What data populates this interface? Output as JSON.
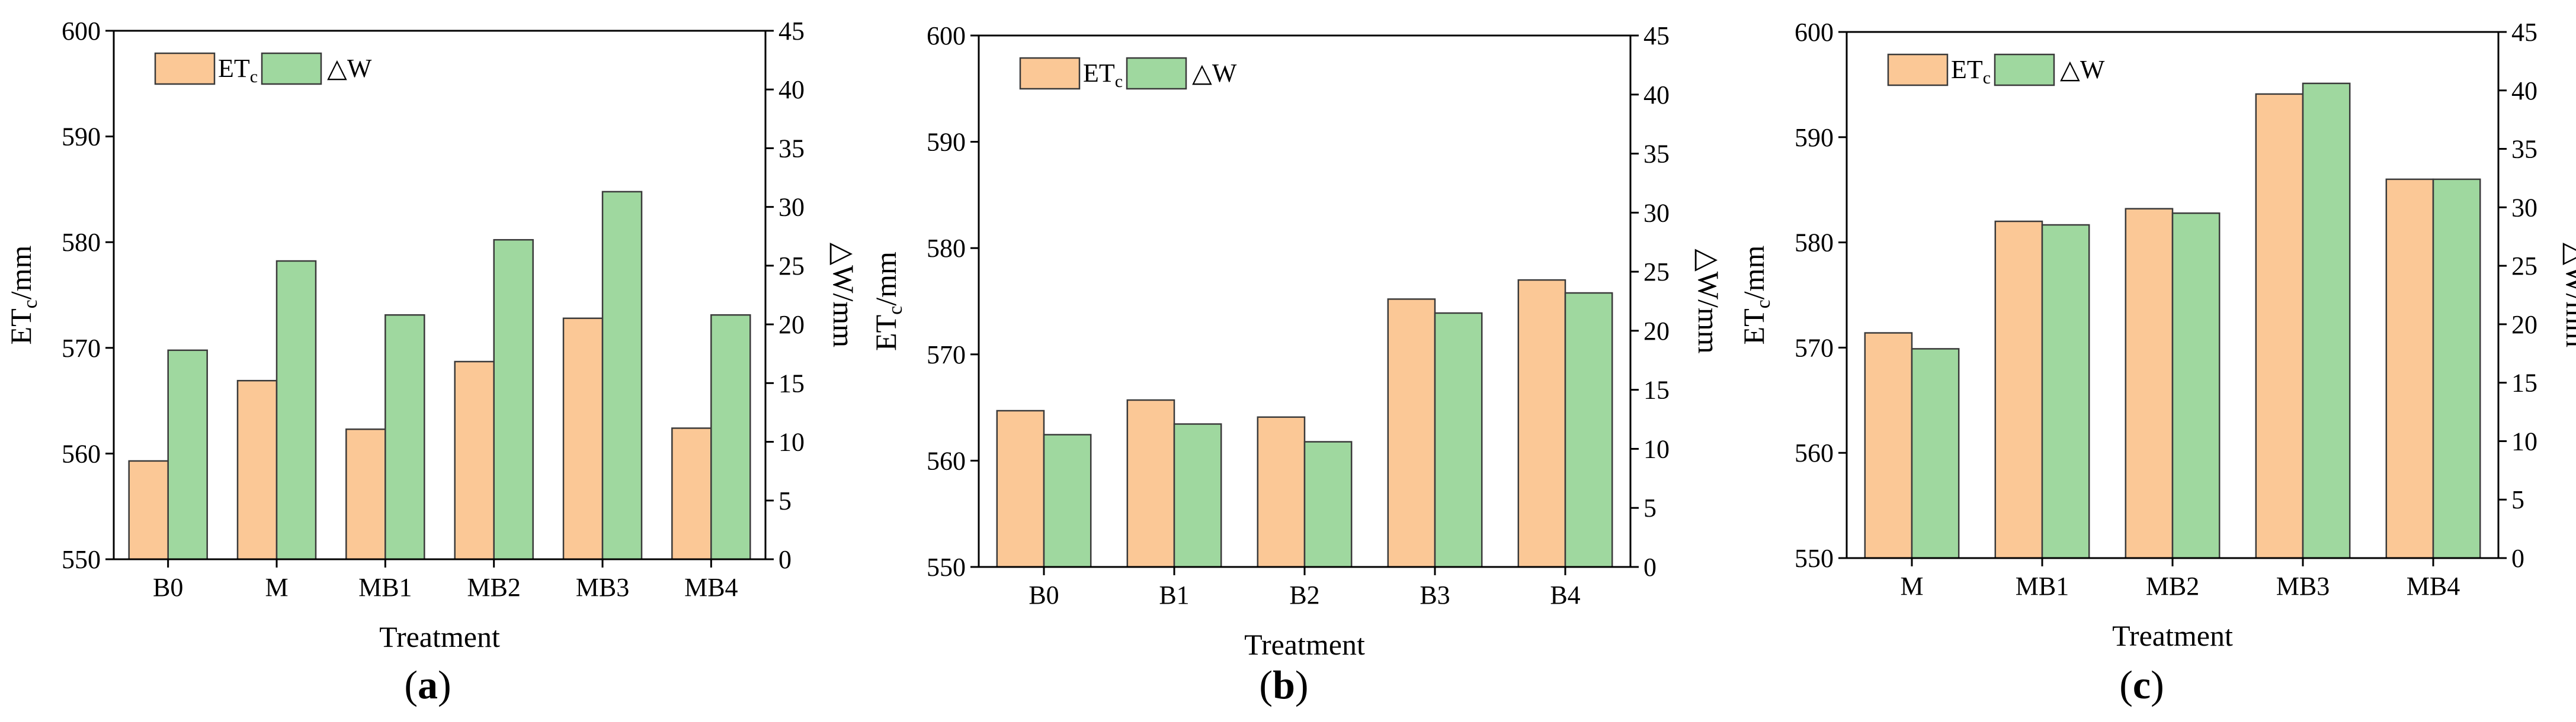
{
  "colors": {
    "etc": "#fbc896",
    "dw": "#9fd89f",
    "edge": "#3a3a3a",
    "axis": "#000000"
  },
  "chart_data": [
    {
      "type": "bar",
      "panel_label": "a",
      "categories": [
        "B0",
        "M",
        "MB1",
        "MB2",
        "MB3",
        "MB4"
      ],
      "series": [
        {
          "name": "ETc",
          "axis": "left",
          "values": [
            559.3,
            566.9,
            562.3,
            568.7,
            572.8,
            562.4
          ]
        },
        {
          "name": "ΔW",
          "axis": "right",
          "values": [
            17.8,
            25.4,
            20.8,
            27.2,
            31.3,
            20.8
          ]
        }
      ],
      "xlabel": "Treatment",
      "ylabel_left": {
        "main": "ET",
        "sub": "c",
        "rest": "/mm"
      },
      "ylabel_right": "△W/mm",
      "ylim_left": [
        550,
        600
      ],
      "ylim_right": [
        0,
        45
      ],
      "yticks_left": [
        "550",
        "560",
        "570",
        "580",
        "590",
        "600"
      ],
      "yticks_right": [
        "0",
        "5",
        "10",
        "15",
        "20",
        "25",
        "30",
        "35",
        "40",
        "45"
      ],
      "legend": [
        {
          "main": "ET",
          "sub": "c"
        },
        {
          "main": "△W",
          "sub": ""
        }
      ],
      "legend_position": "top-left"
    },
    {
      "type": "bar",
      "panel_label": "b",
      "categories": [
        "B0",
        "B1",
        "B2",
        "B3",
        "B4"
      ],
      "series": [
        {
          "name": "ETc",
          "axis": "left",
          "values": [
            564.7,
            565.7,
            564.1,
            575.2,
            577.0
          ]
        },
        {
          "name": "ΔW",
          "axis": "right",
          "values": [
            11.2,
            12.1,
            10.6,
            21.5,
            23.2
          ]
        }
      ],
      "xlabel": "Treatment",
      "ylabel_left": {
        "main": "ET",
        "sub": "c",
        "rest": "/mm"
      },
      "ylabel_right": "△W/mm",
      "ylim_left": [
        550,
        600
      ],
      "ylim_right": [
        0,
        45
      ],
      "yticks_left": [
        "550",
        "560",
        "570",
        "580",
        "590",
        "600"
      ],
      "yticks_right": [
        "0",
        "5",
        "10",
        "15",
        "20",
        "25",
        "30",
        "35",
        "40",
        "45"
      ],
      "legend": [
        {
          "main": "ET",
          "sub": "c"
        },
        {
          "main": "△W",
          "sub": ""
        }
      ],
      "legend_position": "top-left"
    },
    {
      "type": "bar",
      "panel_label": "c",
      "categories": [
        "M",
        "MB1",
        "MB2",
        "MB3",
        "MB4"
      ],
      "series": [
        {
          "name": "ETc",
          "axis": "left",
          "values": [
            571.4,
            582.0,
            583.2,
            594.1,
            586.0
          ]
        },
        {
          "name": "ΔW",
          "axis": "right",
          "values": [
            17.9,
            28.5,
            29.5,
            40.6,
            32.4
          ]
        }
      ],
      "xlabel": "Treatment",
      "ylabel_left": {
        "main": "ET",
        "sub": "c",
        "rest": "/mm"
      },
      "ylabel_right": "△W/mm",
      "ylim_left": [
        550,
        600
      ],
      "ylim_right": [
        0,
        45
      ],
      "yticks_left": [
        "550",
        "560",
        "570",
        "580",
        "590",
        "600"
      ],
      "yticks_right": [
        "0",
        "5",
        "10",
        "15",
        "20",
        "25",
        "30",
        "35",
        "40",
        "45"
      ],
      "legend": [
        {
          "main": "ET",
          "sub": "c"
        },
        {
          "main": "△W",
          "sub": ""
        }
      ],
      "legend_position": "top-left"
    }
  ]
}
